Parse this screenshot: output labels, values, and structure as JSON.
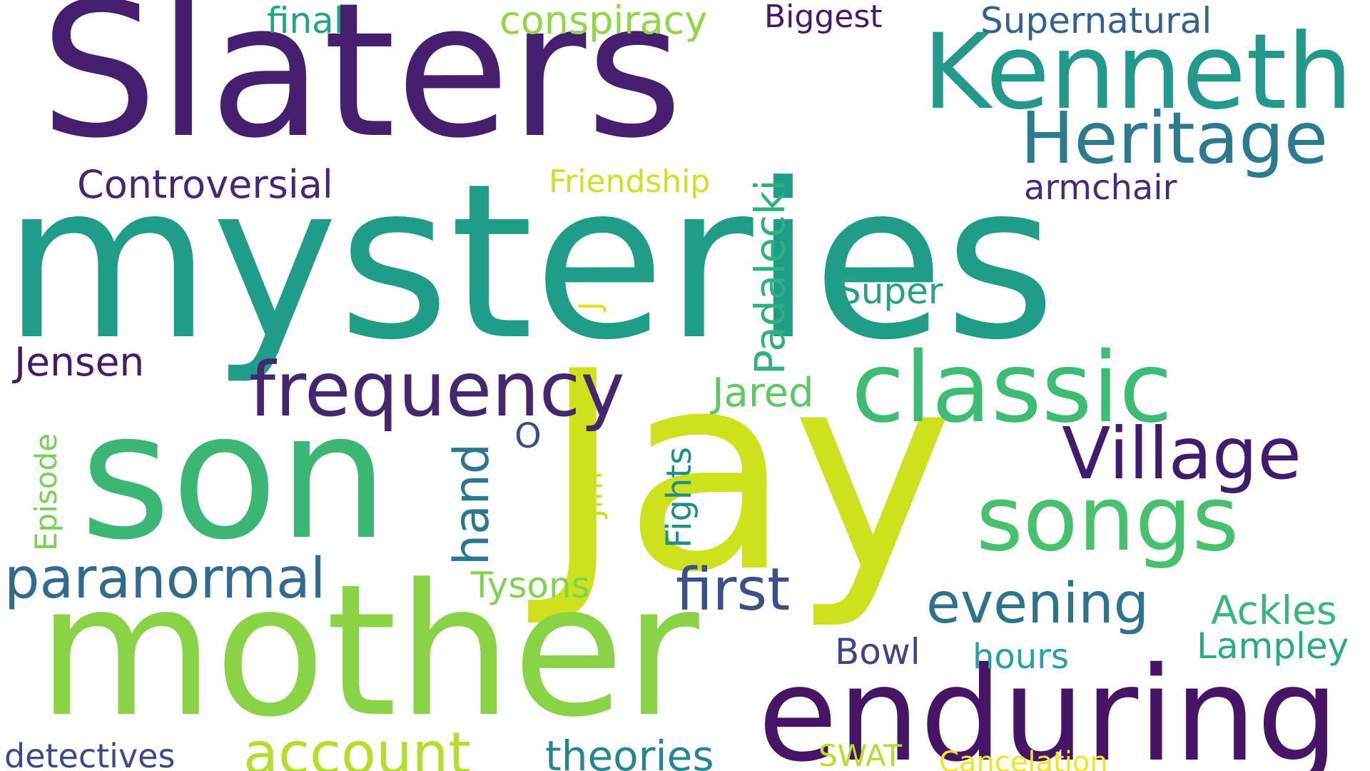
{
  "words": [
    {
      "text": "Slaters",
      "color": "#461f6f"
    },
    {
      "text": "mysteries",
      "color": "#1f9d89"
    },
    {
      "text": "Jay",
      "color": "#cde11d"
    },
    {
      "text": "son",
      "color": "#3bb675"
    },
    {
      "text": "mother",
      "color": "#8ad346"
    },
    {
      "text": "enduring",
      "color": "#461565"
    },
    {
      "text": "Kenneth",
      "color": "#22998a"
    },
    {
      "text": "Heritage",
      "color": "#2a7b8e"
    },
    {
      "text": "classic",
      "color": "#3dbc74"
    },
    {
      "text": "songs",
      "color": "#48c16e"
    },
    {
      "text": "Village",
      "color": "#401c6c"
    },
    {
      "text": "frequency",
      "color": "#43286f"
    },
    {
      "text": "evening",
      "color": "#2b748e"
    },
    {
      "text": "account",
      "color": "#b5de2b"
    },
    {
      "text": "paranormal",
      "color": "#316b8e"
    },
    {
      "text": "first",
      "color": "#3c4f8a"
    },
    {
      "text": "theories",
      "color": "#24868e"
    },
    {
      "text": "conspiracy",
      "color": "#90d743"
    },
    {
      "text": "Supernatural",
      "color": "#35628d"
    },
    {
      "text": "Controversial",
      "color": "#482676"
    },
    {
      "text": "armchair",
      "color": "#472a79"
    },
    {
      "text": "Friendship",
      "color": "#cde11d"
    },
    {
      "text": "Biggest",
      "color": "#46196b"
    },
    {
      "text": "final",
      "color": "#20a486"
    },
    {
      "text": "Super",
      "color": "#23a385"
    },
    {
      "text": "Jensen",
      "color": "#48186a"
    },
    {
      "text": "Jared",
      "color": "#5ec962"
    },
    {
      "text": "O",
      "color": "#3e4c8a"
    },
    {
      "text": "Tysons",
      "color": "#7fd34e"
    },
    {
      "text": "Ackles",
      "color": "#37b878"
    },
    {
      "text": "Lampley",
      "color": "#26ad81"
    },
    {
      "text": "Bowl",
      "color": "#414487"
    },
    {
      "text": "hours",
      "color": "#25a2a0"
    },
    {
      "text": "detectives",
      "color": "#3f4889"
    },
    {
      "text": "SWAT",
      "color": "#b8de29"
    },
    {
      "text": "Cancelation",
      "color": "#f1e51d"
    },
    {
      "text": "Padalecki",
      "color": "#2db27d"
    },
    {
      "text": "hand",
      "color": "#2a788e"
    },
    {
      "text": "Fights",
      "color": "#208f8c"
    },
    {
      "text": "Jim",
      "color": "#cde11d"
    },
    {
      "text": "J",
      "color": "#dde318"
    },
    {
      "text": "Episode",
      "color": "#77d153"
    }
  ]
}
